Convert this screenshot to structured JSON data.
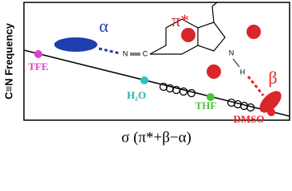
{
  "axes": {
    "y_label": "C≡N Frequency",
    "x_label": "σ (π*+β−α)"
  },
  "solvents": [
    {
      "label": "TFE",
      "color": "#e83ccf"
    },
    {
      "label": "H₂O",
      "color": "#29c4c4"
    },
    {
      "label": "THF",
      "color": "#4cc43a"
    },
    {
      "label": "DMSO",
      "color": "#e8232a"
    }
  ],
  "terms": {
    "alpha": "α",
    "beta": "β",
    "pi_star": "π*"
  },
  "molecule": {
    "nitrile_n": "N",
    "nitrile_c": "C",
    "ring_n": "N",
    "ring_h": "H"
  }
}
